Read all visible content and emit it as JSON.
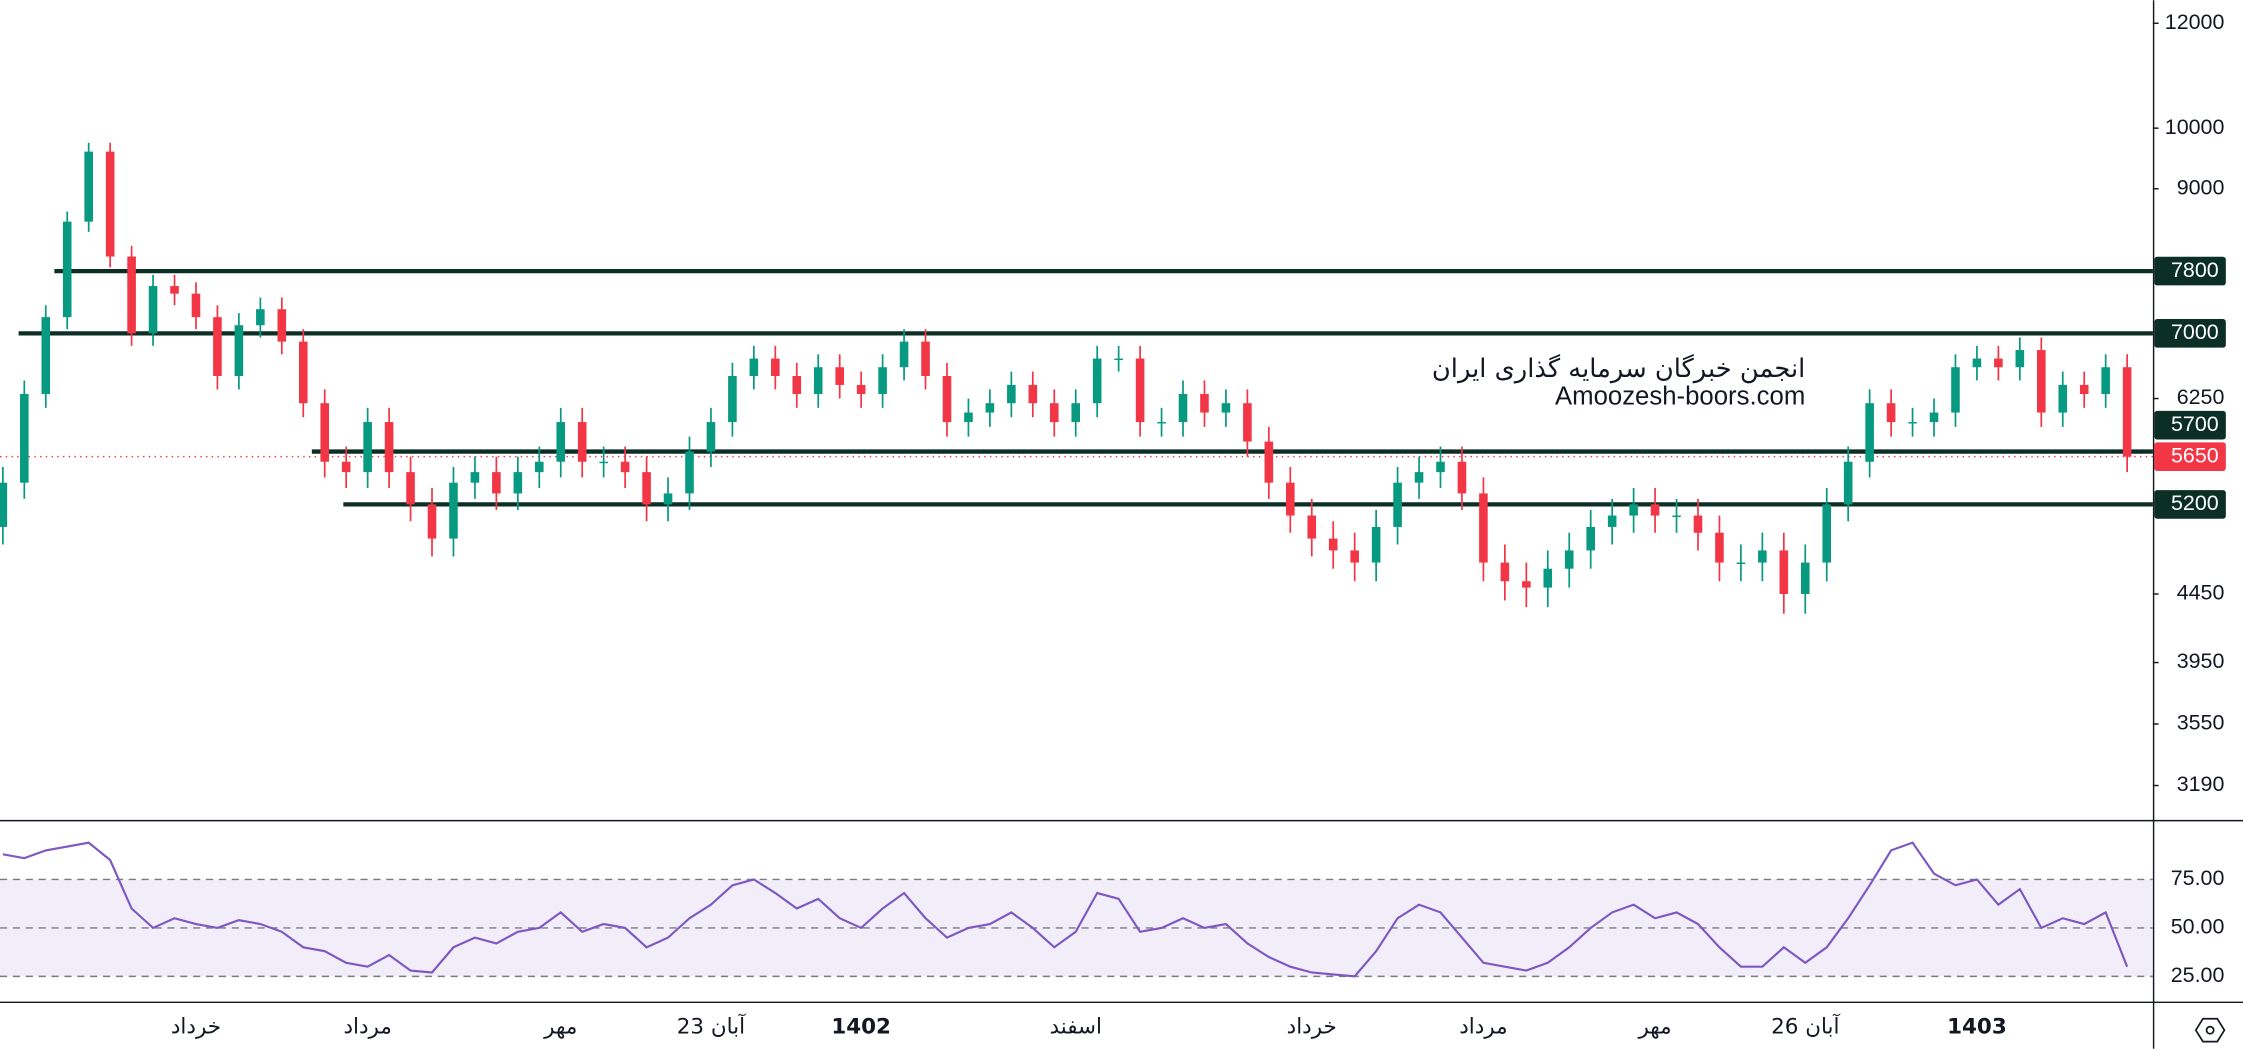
{
  "chart_data": {
    "type": "candlestick",
    "log_scale": true,
    "up_color": "#089981",
    "down_color": "#f23645",
    "categories": [
      null,
      null,
      null,
      null,
      null,
      null,
      null,
      null,
      null,
      "خرداد",
      null,
      null,
      null,
      null,
      null,
      null,
      null,
      "مرداد",
      null,
      null,
      null,
      null,
      null,
      null,
      null,
      null,
      "مهر",
      null,
      null,
      null,
      null,
      null,
      null,
      "23 آبان",
      null,
      null,
      null,
      null,
      null,
      null,
      "1402",
      null,
      null,
      null,
      null,
      null,
      null,
      null,
      null,
      null,
      "اسفند",
      null,
      null,
      null,
      null,
      null,
      null,
      null,
      null,
      null,
      null,
      "خرداد",
      null,
      null,
      null,
      null,
      null,
      null,
      null,
      "مرداد",
      null,
      null,
      null,
      null,
      null,
      null,
      null,
      "مهر",
      null,
      null,
      null,
      null,
      null,
      null,
      "26 آبان",
      null,
      null,
      null,
      null,
      null,
      null,
      null,
      "1403",
      null,
      null,
      null,
      null,
      null,
      null,
      null
    ],
    "open": [
      5000,
      5400,
      6300,
      7200,
      8500,
      9600,
      8000,
      7000,
      7600,
      7500,
      7200,
      6500,
      7100,
      7300,
      6900,
      6200,
      5600,
      5500,
      6000,
      5500,
      5200,
      4900,
      5400,
      5500,
      5300,
      5500,
      5600,
      6000,
      5600,
      5600,
      5500,
      5200,
      5300,
      5700,
      6000,
      6500,
      6700,
      6500,
      6300,
      6600,
      6400,
      6300,
      6600,
      6900,
      6500,
      6000,
      6100,
      6200,
      6400,
      6200,
      6000,
      6200,
      6700,
      6700,
      6000,
      6000,
      6300,
      6100,
      6200,
      5800,
      5400,
      5100,
      4900,
      4800,
      4700,
      5000,
      5400,
      5500,
      5600,
      5300,
      4700,
      4550,
      4500,
      4650,
      4800,
      5000,
      5100,
      5200,
      5100,
      5100,
      4950,
      4700,
      4700,
      4800,
      4450,
      4700,
      5200,
      5600,
      6200,
      6000,
      6000,
      6100,
      6600,
      6700,
      6600,
      6800,
      6100,
      6400,
      6300,
      6600
    ],
    "high": [
      5550,
      6450,
      7350,
      8650,
      9750,
      9750,
      8150,
      7750,
      7750,
      7650,
      7350,
      7250,
      7450,
      7450,
      7050,
      6350,
      5750,
      6150,
      6150,
      5650,
      5350,
      5550,
      5650,
      5650,
      5650,
      5750,
      6150,
      6150,
      5750,
      5750,
      5650,
      5450,
      5850,
      6150,
      6650,
      6850,
      6850,
      6650,
      6750,
      6750,
      6550,
      6750,
      7050,
      7050,
      6650,
      6250,
      6350,
      6550,
      6550,
      6350,
      6350,
      6850,
      6850,
      6850,
      6150,
      6450,
      6450,
      6350,
      6350,
      5950,
      5550,
      5250,
      5050,
      4950,
      5150,
      5550,
      5650,
      5750,
      5750,
      5450,
      4850,
      4700,
      4800,
      4950,
      5150,
      5250,
      5350,
      5350,
      5250,
      5250,
      5100,
      4850,
      4950,
      4950,
      4850,
      5350,
      5750,
      6350,
      6350,
      6150,
      6250,
      6750,
      6850,
      6850,
      6950,
      6950,
      6550,
      6550,
      6750,
      6750
    ],
    "low": [
      4850,
      5250,
      6150,
      7050,
      8350,
      7850,
      6850,
      6850,
      7350,
      7050,
      6350,
      6350,
      6950,
      6750,
      6050,
      5450,
      5350,
      5350,
      5350,
      5050,
      4750,
      4750,
      5250,
      5150,
      5150,
      5350,
      5450,
      5450,
      5450,
      5350,
      5050,
      5050,
      5150,
      5550,
      5850,
      6350,
      6350,
      6150,
      6150,
      6250,
      6150,
      6150,
      6450,
      6350,
      5850,
      5850,
      5950,
      6050,
      6050,
      5850,
      5850,
      6050,
      6550,
      5850,
      5850,
      5850,
      5950,
      5950,
      5650,
      5250,
      4950,
      4750,
      4650,
      4550,
      4550,
      4850,
      5250,
      5350,
      5150,
      4550,
      4400,
      4350,
      4350,
      4500,
      4650,
      4850,
      4950,
      4950,
      4950,
      4800,
      4550,
      4550,
      4550,
      4300,
      4300,
      4550,
      5050,
      5450,
      5850,
      5850,
      5850,
      5950,
      6450,
      6450,
      6450,
      5950,
      5950,
      6150,
      6150,
      5500
    ],
    "close": [
      5400,
      6300,
      7200,
      8500,
      9600,
      8000,
      7000,
      7600,
      7500,
      7200,
      6500,
      7100,
      7300,
      6900,
      6200,
      5600,
      5500,
      6000,
      5500,
      5200,
      4900,
      5400,
      5500,
      5300,
      5500,
      5600,
      6000,
      5600,
      5600,
      5500,
      5200,
      5300,
      5700,
      6000,
      6500,
      6700,
      6500,
      6300,
      6600,
      6400,
      6300,
      6600,
      6900,
      6500,
      6000,
      6100,
      6200,
      6400,
      6200,
      6000,
      6200,
      6700,
      6700,
      6000,
      6000,
      6300,
      6100,
      6200,
      5800,
      5400,
      5100,
      4900,
      4800,
      4700,
      5000,
      5400,
      5500,
      5600,
      5300,
      4700,
      4550,
      4500,
      4650,
      4800,
      5000,
      5100,
      5200,
      5100,
      5100,
      4950,
      4700,
      4700,
      4800,
      4450,
      4700,
      5200,
      5600,
      6200,
      6000,
      6000,
      6100,
      6600,
      6700,
      6600,
      6800,
      6100,
      6400,
      6300,
      6600,
      5650
    ],
    "ylim": [
      3005,
      12490
    ],
    "yticks": [
      12000,
      10000,
      9000,
      6250,
      4450,
      3950,
      3550,
      3190
    ],
    "levels": [
      7800,
      7000,
      5700,
      5200
    ],
    "level_color": "#0b2e25",
    "last_price": 5650,
    "watermark": [
      "انجمن خبرگان سرمایه گذاری ایران",
      "Amoozesh-boors.com"
    ],
    "rsi": {
      "values": [
        88,
        86,
        90,
        92,
        94,
        85,
        60,
        50,
        55,
        52,
        50,
        54,
        52,
        48,
        40,
        38,
        32,
        30,
        36,
        28,
        27,
        40,
        45,
        42,
        48,
        50,
        58,
        48,
        52,
        50,
        40,
        45,
        55,
        62,
        72,
        75,
        68,
        60,
        65,
        55,
        50,
        60,
        68,
        55,
        45,
        50,
        52,
        58,
        50,
        40,
        48,
        68,
        65,
        48,
        50,
        55,
        50,
        52,
        42,
        35,
        30,
        27,
        26,
        25,
        38,
        55,
        62,
        58,
        45,
        32,
        30,
        28,
        32,
        40,
        50,
        58,
        62,
        55,
        58,
        52,
        40,
        30,
        30,
        40,
        32,
        40,
        55,
        72,
        90,
        94,
        78,
        72,
        75,
        62,
        70,
        50,
        55,
        52,
        58,
        30
      ],
      "color": "#7e57c2",
      "ylim": [
        12,
        105
      ],
      "yticks": [
        {
          "value": 75,
          "label": "75.00"
        },
        {
          "value": 50,
          "label": "50.00"
        },
        {
          "value": 25,
          "label": "25.00"
        }
      ]
    }
  }
}
